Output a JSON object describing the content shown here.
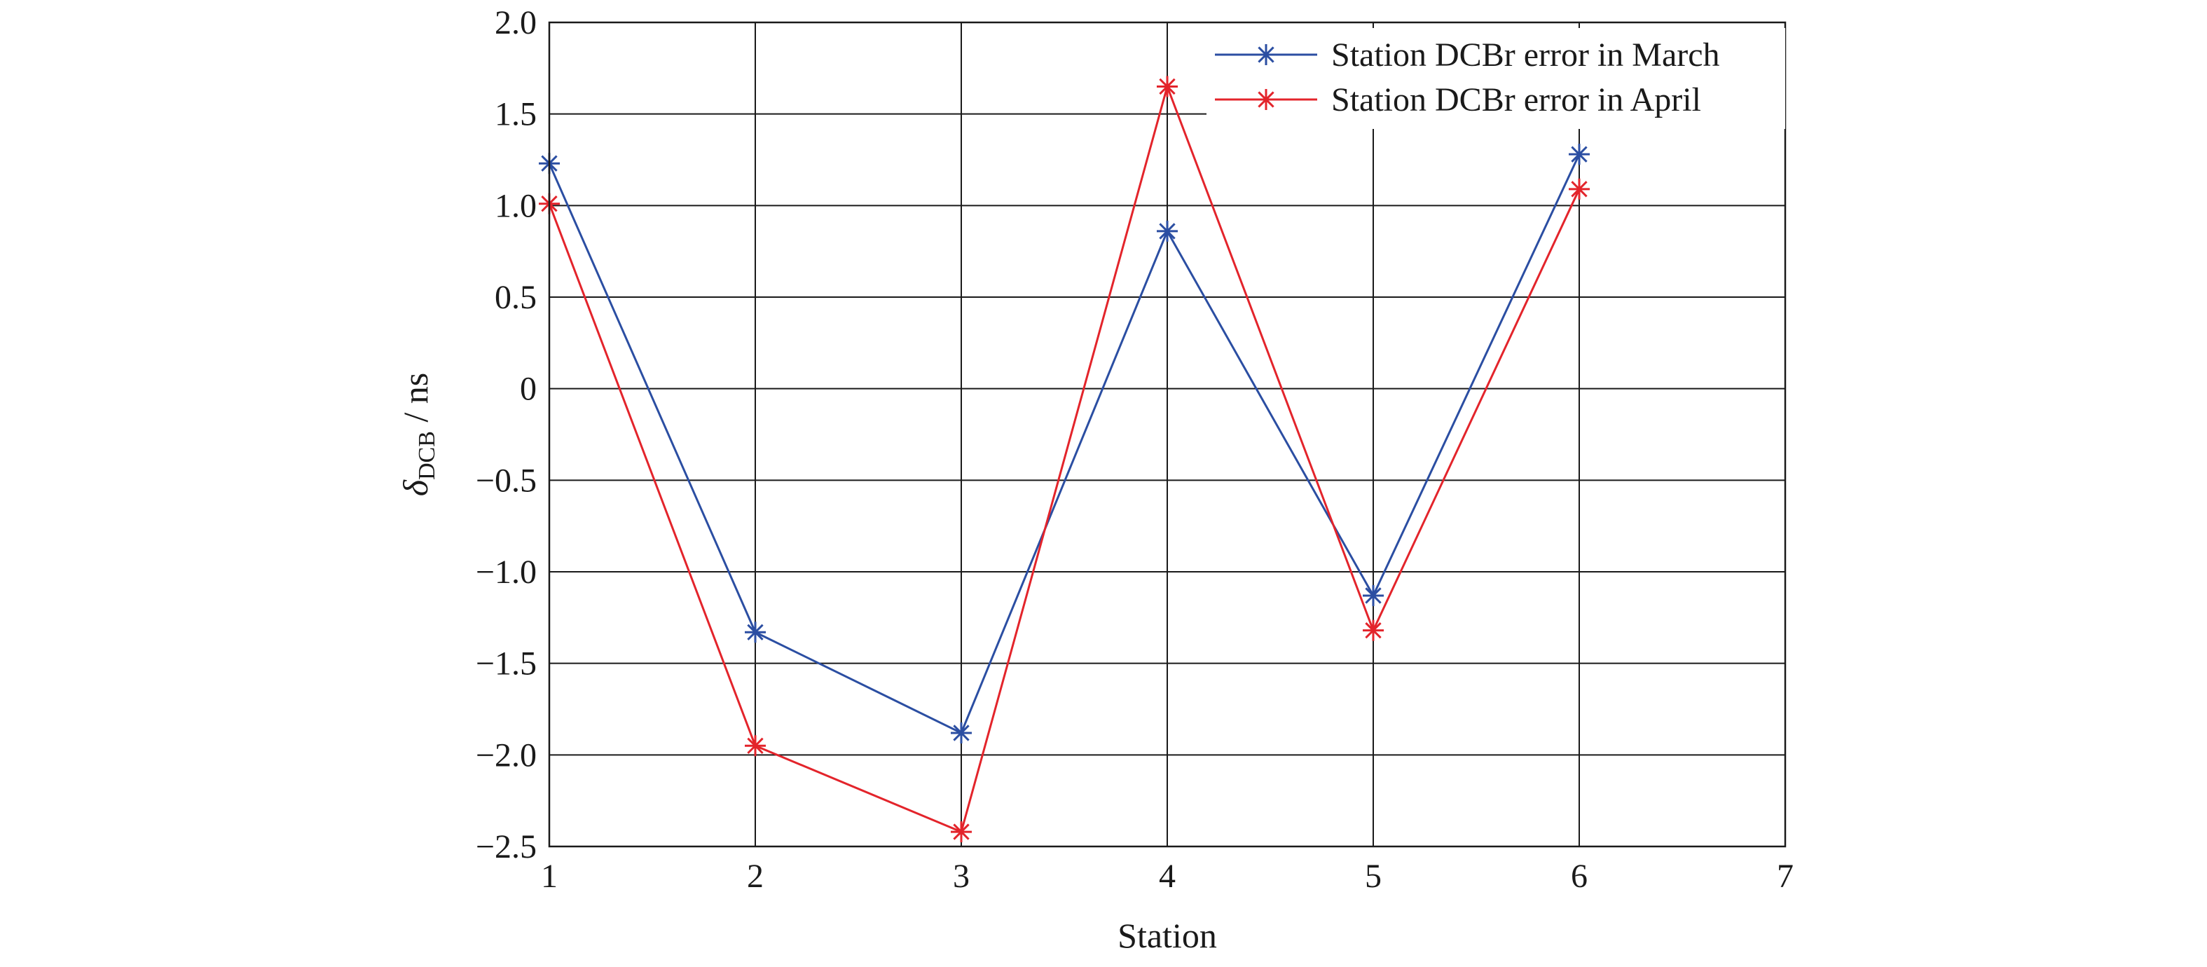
{
  "chart_data": {
    "type": "line",
    "xlabel": "Station",
    "ylabel": {
      "symbol": "δ",
      "subscript": "DCB",
      "unit": " / ns"
    },
    "xlim": [
      1,
      7
    ],
    "ylim": [
      -2.5,
      2.0
    ],
    "x_ticks": [
      1,
      2,
      3,
      4,
      5,
      6,
      7
    ],
    "x_tick_labels": [
      "1",
      "2",
      "3",
      "4",
      "5",
      "6",
      "7"
    ],
    "y_ticks": [
      2.0,
      1.5,
      1.0,
      0.5,
      0,
      -0.5,
      -1.0,
      -1.5,
      -2.0,
      -2.5
    ],
    "y_tick_labels": [
      "2.0",
      "1.5",
      "1.0",
      "0.5",
      "0",
      "−0.5",
      "−1.0",
      "−1.5",
      "−2.0",
      "−2.5"
    ],
    "grid": true,
    "legend_position": "top-right",
    "x": [
      1,
      2,
      3,
      4,
      5,
      6
    ],
    "series": [
      {
        "name": "Station DCBr error in March",
        "color": "#2b4ea2",
        "marker": "asterisk",
        "values": [
          1.23,
          -1.33,
          -1.88,
          0.86,
          -1.13,
          1.28
        ]
      },
      {
        "name": "Station DCBr error in April",
        "color": "#e3242b",
        "marker": "asterisk",
        "values": [
          1.01,
          -1.95,
          -2.42,
          1.65,
          -1.32,
          1.09
        ]
      }
    ]
  }
}
